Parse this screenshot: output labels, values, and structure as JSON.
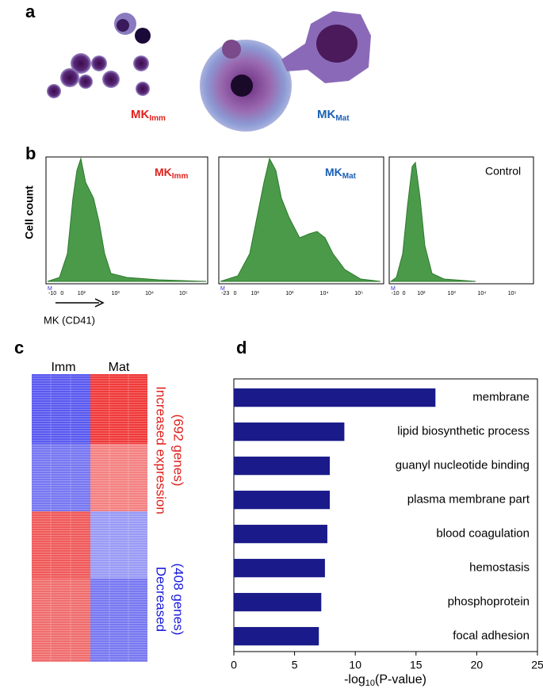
{
  "panels": {
    "a": {
      "label": "a",
      "annotations": [
        {
          "text": "MK",
          "sub": "Imm"
        },
        {
          "text": "MK",
          "sub": "Mat"
        }
      ]
    },
    "b": {
      "label": "b",
      "y_label": "Cell count",
      "x_label": "MK (CD41)",
      "plots": [
        {
          "title": "MK",
          "sub": "Imm",
          "marker": "M",
          "xticklabels": [
            "-10",
            "0",
            "10²",
            "10³",
            "10⁴",
            "10⁵"
          ]
        },
        {
          "title": "MK",
          "sub": "Mat",
          "marker": "M",
          "xticklabels": [
            "-23",
            "0",
            "10²",
            "10³",
            "10⁴",
            "10⁵"
          ]
        },
        {
          "title": "Control",
          "marker": "M",
          "xticklabels": [
            "-10",
            "0",
            "10²",
            "10³",
            "10⁴",
            "10⁵"
          ]
        }
      ]
    },
    "c": {
      "label": "c",
      "columns": [
        "Imm",
        "Mat"
      ],
      "up": "Increased expression",
      "up_count": "(692 genes)",
      "down": "Decreased",
      "down_count": "(408 genes)"
    },
    "d": {
      "label": "d"
    }
  },
  "chart_data": {
    "type": "bar",
    "orientation": "horizontal",
    "categories": [
      "membrane",
      "lipid biosynthetic process",
      "guanyl nucleotide binding",
      "plasma membrane part",
      "blood coagulation",
      "hemostasis",
      "phosphoprotein",
      "focal adhesion"
    ],
    "values": [
      16.6,
      9.1,
      7.9,
      7.9,
      7.7,
      7.5,
      7.2,
      7.0
    ],
    "color": "#1a1a8a",
    "xlim": [
      0,
      25
    ],
    "xticks": [
      0,
      5,
      10,
      15,
      20,
      25
    ],
    "xlabel": {
      "text": "-log",
      "sub": "10",
      "after": "(P-value)"
    },
    "grid": false
  }
}
